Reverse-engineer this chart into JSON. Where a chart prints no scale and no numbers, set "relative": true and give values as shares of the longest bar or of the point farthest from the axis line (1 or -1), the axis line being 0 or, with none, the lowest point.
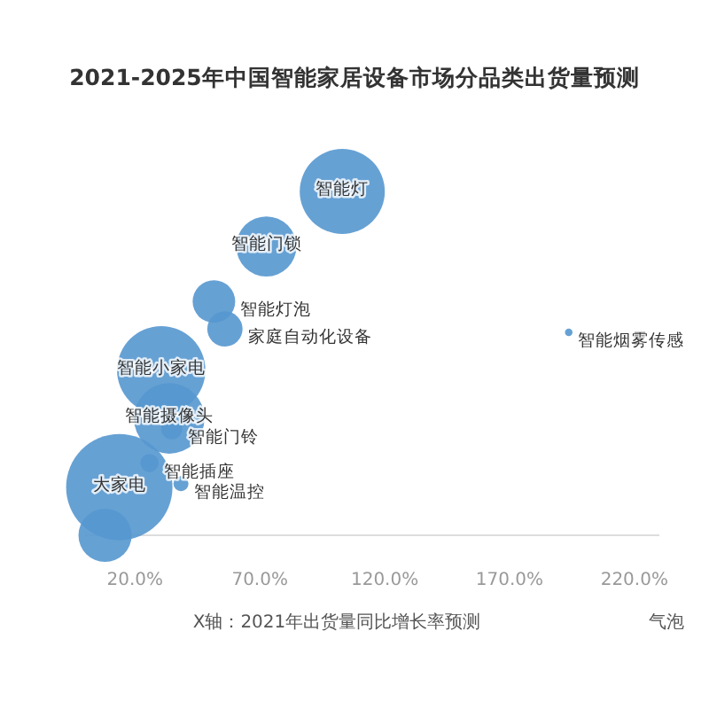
{
  "chart_data": {
    "type": "bubble",
    "title": "2021-2025年中国智能家居设备市场分品类出货量预测",
    "xlabel": "X轴：2021年出货量同比增长率预测",
    "relative": true,
    "xlim": [
      0,
      230
    ],
    "xticks": [
      {
        "value": 20,
        "label": "20.0%"
      },
      {
        "value": 70,
        "label": "70.0%"
      },
      {
        "value": 120,
        "label": "120.0%"
      },
      {
        "value": 170,
        "label": "170.0%"
      },
      {
        "value": 220,
        "label": "220.0%"
      }
    ],
    "x": [
      103,
      72.6,
      51.6,
      56,
      30.5,
      33.7,
      34.7,
      25.8,
      38.4,
      13.7,
      193.7,
      8
    ],
    "series": [
      {
        "color": "#5597cf",
        "values": [
          1,
          0.84,
          0.68,
          0.6,
          0.48,
          0.34,
          0.31,
          0.21,
          0.15,
          0.14,
          0.59,
          0
        ],
        "sizes": [
          0.64,
          0.32,
          0.16,
          0.11,
          0.69,
          0.44,
          0.04,
          0.03,
          0.02,
          1,
          0.005,
          0.25
        ]
      }
    ],
    "annotations": [
      {
        "text": "智能灯",
        "x": 103,
        "y": 1
      },
      {
        "text": "智能门锁",
        "x": 72.6,
        "y": 0.84
      },
      {
        "text": "智能灯泡",
        "x": 51.6,
        "y": 0.68
      },
      {
        "text": "家庭自动化设备",
        "x": 56,
        "y": 0.6
      },
      {
        "text": "智能小家电",
        "x": 30.5,
        "y": 0.48
      },
      {
        "text": "智能摄像头",
        "x": 33.7,
        "y": 0.34
      },
      {
        "text": "智能门铃",
        "x": 34.7,
        "y": 0.31
      },
      {
        "text": "智能插座",
        "x": 25.8,
        "y": 0.21
      },
      {
        "text": "智能温控",
        "x": 38.4,
        "y": 0.15
      },
      {
        "text": "大家电",
        "x": 13.7,
        "y": 0.14
      },
      {
        "text": "智能烟雾传感",
        "x": 193.7,
        "y": 0.59
      },
      "气泡"
    ]
  }
}
